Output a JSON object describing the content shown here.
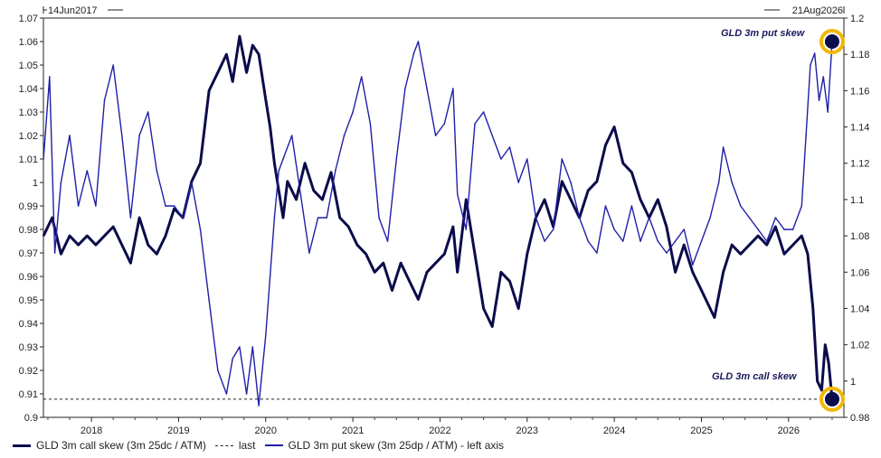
{
  "header": {
    "start_label": "14Jun2017",
    "end_label": "21Aug2026"
  },
  "annotations": {
    "put_label": "GLD 3m put skew",
    "call_label": "GLD 3m call skew"
  },
  "legend": [
    {
      "label": "GLD 3m call skew (3m 25dc / ATM)",
      "color": "#0b0c4a",
      "style": "solid-thick"
    },
    {
      "label": "last",
      "color": "#222222",
      "style": "dashed"
    },
    {
      "label": "GLD 3m put skew (3m 25dp / ATM) - left axis",
      "color": "#1f1fa8",
      "style": "solid-thin"
    }
  ],
  "colors": {
    "call_series": "#0b0c4a",
    "put_series": "#1f1fa8",
    "marker_ring": "#f2b705",
    "marker_fill": "#0b0c4a"
  },
  "chart_data": {
    "type": "line",
    "x_range": [
      "2017-06-14",
      "2026-08-21"
    ],
    "x_tick_labels": [
      "2018",
      "2019",
      "2020",
      "2021",
      "2022",
      "2023",
      "2024",
      "2025",
      "2026"
    ],
    "y_left": {
      "range": [
        0.9,
        1.07
      ],
      "tick_labels": [
        "1.07",
        "1.06",
        "1.05",
        "1.04",
        "1.03",
        "1.02",
        "1.01",
        "1",
        "0.99",
        "0.98",
        "0.97",
        "0.96",
        "0.95",
        "0.94",
        "0.93",
        "0.92",
        "0.91",
        "0.9"
      ]
    },
    "y_right": {
      "range": [
        0.98,
        1.2
      ],
      "tick_labels": [
        "1.2",
        "1.18",
        "1.16",
        "1.14",
        "1.12",
        "1.1",
        "1.08",
        "1.06",
        "1.04",
        "1.02",
        "1",
        "0.98"
      ]
    },
    "last_line": {
      "axis": "right",
      "value": 0.99
    },
    "series": [
      {
        "name": "GLD 3m call skew (3m 25dc / ATM)",
        "axis": "right",
        "x": [
          2017.45,
          2017.55,
          2017.65,
          2017.75,
          2017.85,
          2017.95,
          2018.05,
          2018.15,
          2018.25,
          2018.35,
          2018.45,
          2018.55,
          2018.65,
          2018.75,
          2018.85,
          2018.95,
          2019.05,
          2019.15,
          2019.25,
          2019.35,
          2019.45,
          2019.55,
          2019.62,
          2019.7,
          2019.78,
          2019.85,
          2019.92,
          2020.0,
          2020.05,
          2020.1,
          2020.15,
          2020.2,
          2020.25,
          2020.35,
          2020.45,
          2020.55,
          2020.65,
          2020.75,
          2020.85,
          2020.95,
          2021.05,
          2021.15,
          2021.25,
          2021.35,
          2021.45,
          2021.55,
          2021.65,
          2021.75,
          2021.85,
          2021.95,
          2022.05,
          2022.15,
          2022.2,
          2022.3,
          2022.4,
          2022.5,
          2022.6,
          2022.7,
          2022.8,
          2022.9,
          2023.0,
          2023.1,
          2023.2,
          2023.3,
          2023.4,
          2023.5,
          2023.6,
          2023.7,
          2023.8,
          2023.9,
          2024.0,
          2024.1,
          2024.2,
          2024.3,
          2024.4,
          2024.5,
          2024.6,
          2024.7,
          2024.8,
          2024.9,
          2025.0,
          2025.1,
          2025.15,
          2025.25,
          2025.35,
          2025.45,
          2025.55,
          2025.65,
          2025.75,
          2025.85,
          2025.95,
          2026.05,
          2026.15,
          2026.22,
          2026.28,
          2026.33,
          2026.38,
          2026.42,
          2026.46,
          2026.5
        ],
        "y": [
          1.08,
          1.09,
          1.07,
          1.08,
          1.075,
          1.08,
          1.075,
          1.08,
          1.085,
          1.075,
          1.065,
          1.09,
          1.075,
          1.07,
          1.08,
          1.095,
          1.09,
          1.11,
          1.12,
          1.16,
          1.17,
          1.18,
          1.165,
          1.19,
          1.17,
          1.185,
          1.18,
          1.155,
          1.14,
          1.12,
          1.105,
          1.09,
          1.11,
          1.1,
          1.12,
          1.105,
          1.1,
          1.115,
          1.09,
          1.085,
          1.075,
          1.07,
          1.06,
          1.065,
          1.05,
          1.065,
          1.055,
          1.045,
          1.06,
          1.065,
          1.07,
          1.085,
          1.06,
          1.1,
          1.07,
          1.04,
          1.03,
          1.06,
          1.055,
          1.04,
          1.07,
          1.09,
          1.1,
          1.085,
          1.11,
          1.1,
          1.09,
          1.105,
          1.11,
          1.13,
          1.14,
          1.12,
          1.115,
          1.1,
          1.09,
          1.1,
          1.085,
          1.06,
          1.075,
          1.06,
          1.05,
          1.04,
          1.035,
          1.06,
          1.075,
          1.07,
          1.075,
          1.08,
          1.075,
          1.085,
          1.07,
          1.075,
          1.08,
          1.07,
          1.04,
          1.0,
          0.995,
          1.02,
          1.01,
          0.99
        ]
      },
      {
        "name": "GLD 3m put skew (3m 25dp / ATM) - left axis",
        "axis": "left",
        "x": [
          2017.45,
          2017.52,
          2017.58,
          2017.65,
          2017.75,
          2017.85,
          2017.95,
          2018.05,
          2018.15,
          2018.25,
          2018.35,
          2018.45,
          2018.55,
          2018.65,
          2018.75,
          2018.85,
          2018.95,
          2019.05,
          2019.15,
          2019.25,
          2019.35,
          2019.45,
          2019.55,
          2019.62,
          2019.7,
          2019.78,
          2019.85,
          2019.92,
          2020.0,
          2020.05,
          2020.1,
          2020.15,
          2020.2,
          2020.3,
          2020.4,
          2020.5,
          2020.6,
          2020.7,
          2020.8,
          2020.9,
          2021.0,
          2021.1,
          2021.2,
          2021.3,
          2021.4,
          2021.5,
          2021.6,
          2021.7,
          2021.75,
          2021.85,
          2021.95,
          2022.05,
          2022.15,
          2022.2,
          2022.3,
          2022.4,
          2022.5,
          2022.6,
          2022.7,
          2022.8,
          2022.9,
          2023.0,
          2023.1,
          2023.2,
          2023.3,
          2023.4,
          2023.5,
          2023.6,
          2023.7,
          2023.8,
          2023.9,
          2024.0,
          2024.1,
          2024.2,
          2024.3,
          2024.4,
          2024.5,
          2024.6,
          2024.7,
          2024.8,
          2024.9,
          2025.0,
          2025.1,
          2025.2,
          2025.25,
          2025.35,
          2025.45,
          2025.55,
          2025.65,
          2025.75,
          2025.85,
          2025.95,
          2026.05,
          2026.15,
          2026.2,
          2026.25,
          2026.3,
          2026.35,
          2026.4,
          2026.45,
          2026.5
        ],
        "y": [
          1.01,
          1.045,
          0.97,
          1.0,
          1.02,
          0.99,
          1.005,
          0.99,
          1.035,
          1.05,
          1.02,
          0.985,
          1.02,
          1.03,
          1.005,
          0.99,
          0.99,
          0.985,
          1.0,
          0.98,
          0.95,
          0.92,
          0.91,
          0.925,
          0.93,
          0.91,
          0.93,
          0.905,
          0.935,
          0.96,
          0.985,
          1.005,
          1.01,
          1.02,
          0.995,
          0.97,
          0.985,
          0.985,
          1.005,
          1.02,
          1.03,
          1.045,
          1.025,
          0.985,
          0.975,
          1.01,
          1.04,
          1.055,
          1.06,
          1.04,
          1.02,
          1.025,
          1.04,
          0.995,
          0.98,
          1.025,
          1.03,
          1.02,
          1.01,
          1.015,
          1.0,
          1.01,
          0.985,
          0.975,
          0.98,
          1.01,
          1.0,
          0.985,
          0.975,
          0.97,
          0.99,
          0.98,
          0.975,
          0.99,
          0.975,
          0.985,
          0.975,
          0.97,
          0.975,
          0.98,
          0.965,
          0.975,
          0.985,
          1.0,
          1.015,
          1.0,
          0.99,
          0.985,
          0.98,
          0.975,
          0.985,
          0.98,
          0.98,
          0.99,
          1.02,
          1.05,
          1.055,
          1.035,
          1.045,
          1.03,
          1.06
        ]
      }
    ]
  }
}
